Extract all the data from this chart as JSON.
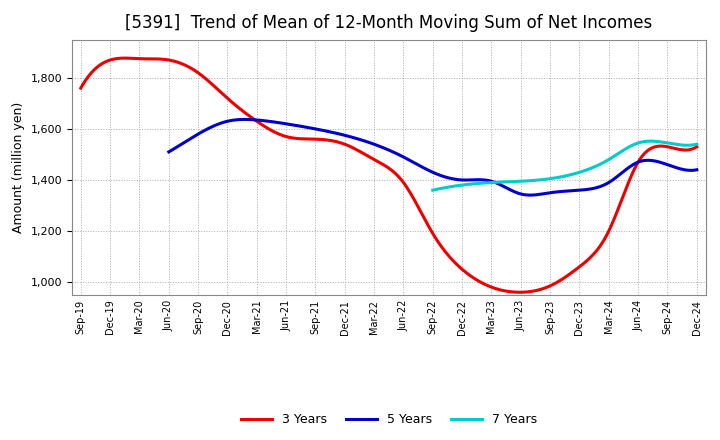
{
  "title": "[5391]  Trend of Mean of 12-Month Moving Sum of Net Incomes",
  "ylabel": "Amount (million yen)",
  "background_color": "#ffffff",
  "plot_bg_color": "#ffffff",
  "grid_color": "#aaaaaa",
  "ylim": [
    950,
    1950
  ],
  "yticks": [
    1000,
    1200,
    1400,
    1600,
    1800
  ],
  "x_labels": [
    "Sep-19",
    "Dec-19",
    "Mar-20",
    "Jun-20",
    "Sep-20",
    "Dec-20",
    "Mar-21",
    "Jun-21",
    "Sep-21",
    "Dec-21",
    "Mar-22",
    "Jun-22",
    "Sep-22",
    "Dec-22",
    "Mar-23",
    "Jun-23",
    "Sep-23",
    "Dec-23",
    "Mar-24",
    "Jun-24",
    "Sep-24",
    "Dec-24"
  ],
  "series": {
    "3 Years": {
      "color": "#ee0000",
      "linewidth": 2.2,
      "data": [
        1760,
        1870,
        1875,
        1870,
        1820,
        1720,
        1630,
        1570,
        1560,
        1540,
        1480,
        1390,
        1190,
        1050,
        980,
        960,
        985,
        1060,
        1200,
        1470,
        1530,
        1530
      ]
    },
    "5 Years": {
      "color": "#0000cc",
      "linewidth": 2.2,
      "data": [
        null,
        null,
        null,
        1510,
        1580,
        1630,
        1635,
        1620,
        1600,
        1575,
        1540,
        1490,
        1430,
        1400,
        1395,
        1345,
        1350,
        1360,
        1390,
        1470,
        1460,
        1440
      ]
    },
    "7 Years": {
      "color": "#00cccc",
      "linewidth": 2.2,
      "data": [
        null,
        null,
        null,
        null,
        null,
        null,
        null,
        null,
        null,
        null,
        null,
        null,
        1360,
        1380,
        1390,
        1395,
        1405,
        1430,
        1480,
        1545,
        1545,
        1540
      ]
    },
    "10 Years": {
      "color": "#008800",
      "linewidth": 2.2,
      "data": [
        null,
        null,
        null,
        null,
        null,
        null,
        null,
        null,
        null,
        null,
        null,
        null,
        null,
        null,
        null,
        null,
        null,
        null,
        null,
        null,
        null,
        null
      ]
    }
  },
  "title_fontsize": 12,
  "legend_fontsize": 9,
  "ylabel_fontsize": 9,
  "tick_fontsize": 8,
  "xtick_fontsize": 7
}
